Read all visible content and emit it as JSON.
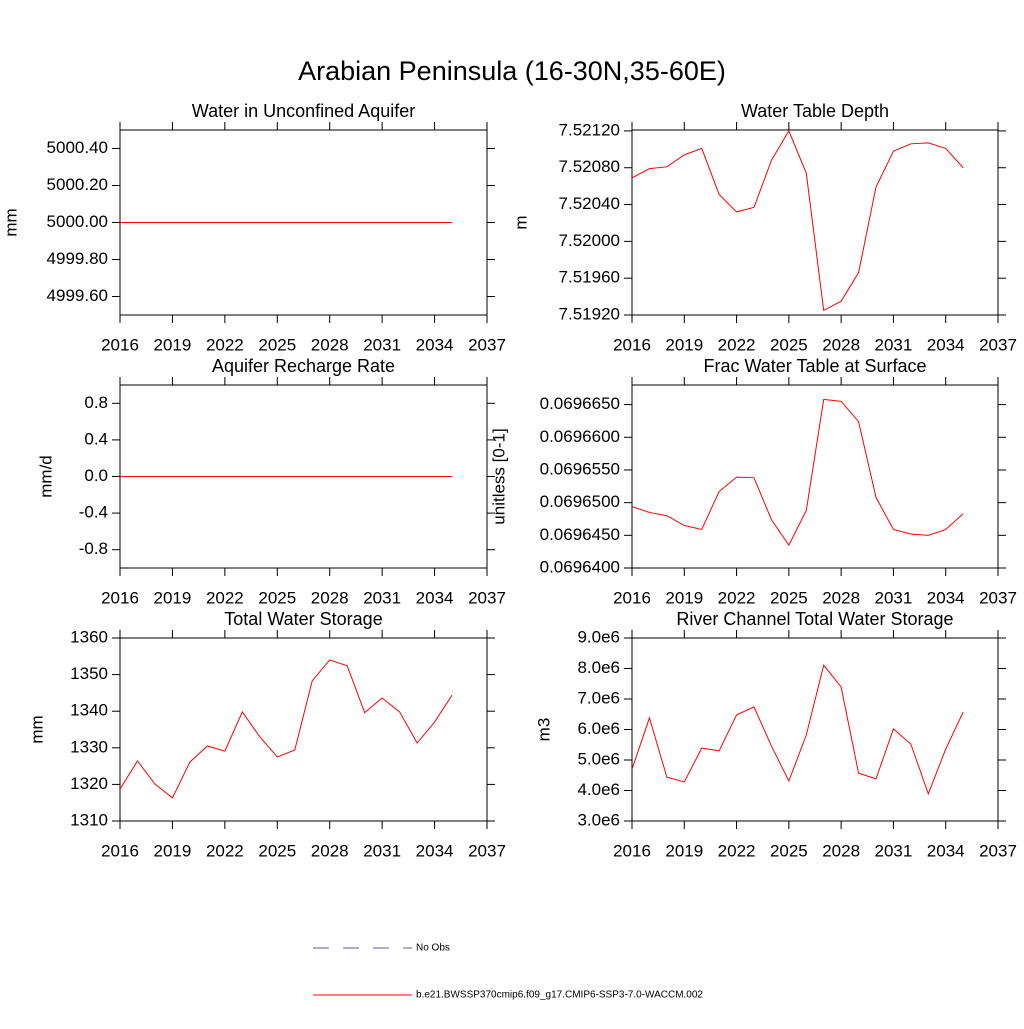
{
  "title": "Arabian Peninsula (16-30N,35-60E)",
  "legend": [
    {
      "label": "No Obs",
      "color": "#5a5aa0",
      "dashed": true
    },
    {
      "label": "b.e21.BWSSP370cmip6.f09_g17.CMIP6-SSP3-7.0-WACCM.002",
      "color": "#ff0000",
      "dashed": false
    }
  ],
  "chart_data": [
    {
      "type": "line",
      "title": "Water in Unconfined Aquifer",
      "y_label": "mm",
      "x": [
        2016,
        2017,
        2018,
        2019,
        2020,
        2021,
        2022,
        2023,
        2024,
        2025,
        2026,
        2027,
        2028,
        2029,
        2030,
        2031,
        2032,
        2033,
        2034,
        2035
      ],
      "xlim": [
        2016,
        2037
      ],
      "xticks": [
        2016,
        2019,
        2022,
        2025,
        2028,
        2031,
        2034,
        2037
      ],
      "ylim": [
        4999.5,
        5000.5
      ],
      "yticks": [
        {
          "value": 4999.6,
          "label": "4999.60"
        },
        {
          "value": 4999.8,
          "label": "4999.80"
        },
        {
          "value": 5000.0,
          "label": "5000.00"
        },
        {
          "value": 5000.2,
          "label": "5000.20"
        },
        {
          "value": 5000.4,
          "label": "5000.40"
        }
      ],
      "series": [
        {
          "color": "#ff0000",
          "values": [
            5000,
            5000,
            5000,
            5000,
            5000,
            5000,
            5000,
            5000,
            5000,
            5000,
            5000,
            5000,
            5000,
            5000,
            5000,
            5000,
            5000,
            5000,
            5000,
            5000
          ]
        }
      ]
    },
    {
      "type": "line",
      "title": "Water Table Depth",
      "y_label": "m",
      "x": [
        2016,
        2017,
        2018,
        2019,
        2020,
        2021,
        2022,
        2023,
        2024,
        2025,
        2026,
        2027,
        2028,
        2029,
        2030,
        2031,
        2032,
        2033,
        2034,
        2035
      ],
      "xlim": [
        2016,
        2037
      ],
      "xticks": [
        2016,
        2019,
        2022,
        2025,
        2028,
        2031,
        2034,
        2037
      ],
      "ylim": [
        7.5192,
        7.52121
      ],
      "yticks": [
        {
          "value": 7.5192,
          "label": "7.51920"
        },
        {
          "value": 7.5196,
          "label": "7.51960"
        },
        {
          "value": 7.52,
          "label": "7.52000"
        },
        {
          "value": 7.5204,
          "label": "7.52040"
        },
        {
          "value": 7.5208,
          "label": "7.52080"
        },
        {
          "value": 7.5212,
          "label": "7.52120"
        }
      ],
      "series": [
        {
          "color": "#ff0000",
          "values": [
            7.52069,
            7.52079,
            7.52081,
            7.52094,
            7.52101,
            7.52051,
            7.52032,
            7.52037,
            7.52088,
            7.5212,
            7.52074,
            7.51925,
            7.51935,
            7.51966,
            7.52059,
            7.52098,
            7.52106,
            7.52107,
            7.52101,
            7.5208
          ]
        }
      ]
    },
    {
      "type": "line",
      "title": "Aquifer Recharge Rate",
      "y_label": "mm/d",
      "x": [
        2016,
        2017,
        2018,
        2019,
        2020,
        2021,
        2022,
        2023,
        2024,
        2025,
        2026,
        2027,
        2028,
        2029,
        2030,
        2031,
        2032,
        2033,
        2034,
        2035
      ],
      "xlim": [
        2016,
        2037
      ],
      "xticks": [
        2016,
        2019,
        2022,
        2025,
        2028,
        2031,
        2034,
        2037
      ],
      "ylim": [
        -1,
        1
      ],
      "yticks": [
        -0.8,
        -0.4,
        {
          "value": 0,
          "label": "0.0"
        },
        0.4,
        0.8
      ],
      "series": [
        {
          "color": "#ff0000",
          "values": [
            0,
            0,
            0,
            0,
            0,
            0,
            0,
            0,
            0,
            0,
            0,
            0,
            0,
            0,
            0,
            0,
            0,
            0,
            0,
            0
          ]
        }
      ]
    },
    {
      "type": "line",
      "title": "Frac Water Table at Surface",
      "y_label": "unitless [0-1]",
      "x": [
        2016,
        2017,
        2018,
        2019,
        2020,
        2021,
        2022,
        2023,
        2024,
        2025,
        2026,
        2027,
        2028,
        2029,
        2030,
        2031,
        2032,
        2033,
        2034,
        2035
      ],
      "xlim": [
        2016,
        2037
      ],
      "xticks": [
        2016,
        2019,
        2022,
        2025,
        2028,
        2031,
        2034,
        2037
      ],
      "ylim": [
        0.06964,
        0.069668
      ],
      "yticks": [
        {
          "value": 0.06964,
          "label": "0.0696400"
        },
        {
          "value": 0.069645,
          "label": "0.0696450"
        },
        {
          "value": 0.06965,
          "label": "0.0696500"
        },
        {
          "value": 0.069655,
          "label": "0.0696550"
        },
        {
          "value": 0.06966,
          "label": "0.0696600"
        },
        {
          "value": 0.069665,
          "label": "0.0696650"
        }
      ],
      "series": [
        {
          "color": "#ff0000",
          "values": [
            0.0696494,
            0.0696485,
            0.069648,
            0.0696465,
            0.0696459,
            0.0696517,
            0.0696539,
            0.0696538,
            0.0696474,
            0.0696435,
            0.0696488,
            0.0696658,
            0.0696655,
            0.0696624,
            0.0696508,
            0.0696459,
            0.0696452,
            0.069645,
            0.0696459,
            0.0696483
          ]
        }
      ]
    },
    {
      "type": "line",
      "title": "Total Water Storage",
      "y_label": "mm",
      "x": [
        2016,
        2017,
        2018,
        2019,
        2020,
        2021,
        2022,
        2023,
        2024,
        2025,
        2026,
        2027,
        2028,
        2029,
        2030,
        2031,
        2032,
        2033,
        2034,
        2035
      ],
      "xlim": [
        2016,
        2037
      ],
      "xticks": [
        2016,
        2019,
        2022,
        2025,
        2028,
        2031,
        2034,
        2037
      ],
      "ylim": [
        1310,
        1360
      ],
      "yticks": [
        1310,
        1320,
        1330,
        1340,
        1350,
        1360
      ],
      "series": [
        {
          "color": "#ff0000",
          "values": [
            1318.7,
            1326.4,
            1320.1,
            1316.3,
            1326.1,
            1330.5,
            1329.1,
            1339.8,
            1333,
            1327.5,
            1329.4,
            1348.3,
            1354,
            1352.4,
            1339.6,
            1343.6,
            1339.8,
            1331.3,
            1337,
            1344.4
          ]
        }
      ]
    },
    {
      "type": "line",
      "title": "River Channel Total Water Storage",
      "y_label": "m3",
      "x": [
        2016,
        2017,
        2018,
        2019,
        2020,
        2021,
        2022,
        2023,
        2024,
        2025,
        2026,
        2027,
        2028,
        2029,
        2030,
        2031,
        2032,
        2033,
        2034,
        2035
      ],
      "xlim": [
        2016,
        2037
      ],
      "xticks": [
        2016,
        2019,
        2022,
        2025,
        2028,
        2031,
        2034,
        2037
      ],
      "ylim": [
        3000000,
        9000000
      ],
      "yticks": [
        {
          "value": 3000000,
          "label": "3.0e6"
        },
        {
          "value": 4000000,
          "label": "4.0e6"
        },
        {
          "value": 5000000,
          "label": "5.0e6"
        },
        {
          "value": 6000000,
          "label": "6.0e6"
        },
        {
          "value": 7000000,
          "label": "7.0e6"
        },
        {
          "value": 8000000,
          "label": "8.0e6"
        },
        {
          "value": 9000000,
          "label": "9.0e6"
        }
      ],
      "series": [
        {
          "color": "#ff0000",
          "values": [
            4700000,
            6380000,
            4440000,
            4280000,
            5390000,
            5300000,
            6480000,
            6740000,
            5460000,
            4310000,
            5820000,
            8110000,
            7390000,
            4570000,
            4380000,
            6020000,
            5520000,
            3890000,
            5360000,
            6570000
          ]
        }
      ]
    }
  ]
}
